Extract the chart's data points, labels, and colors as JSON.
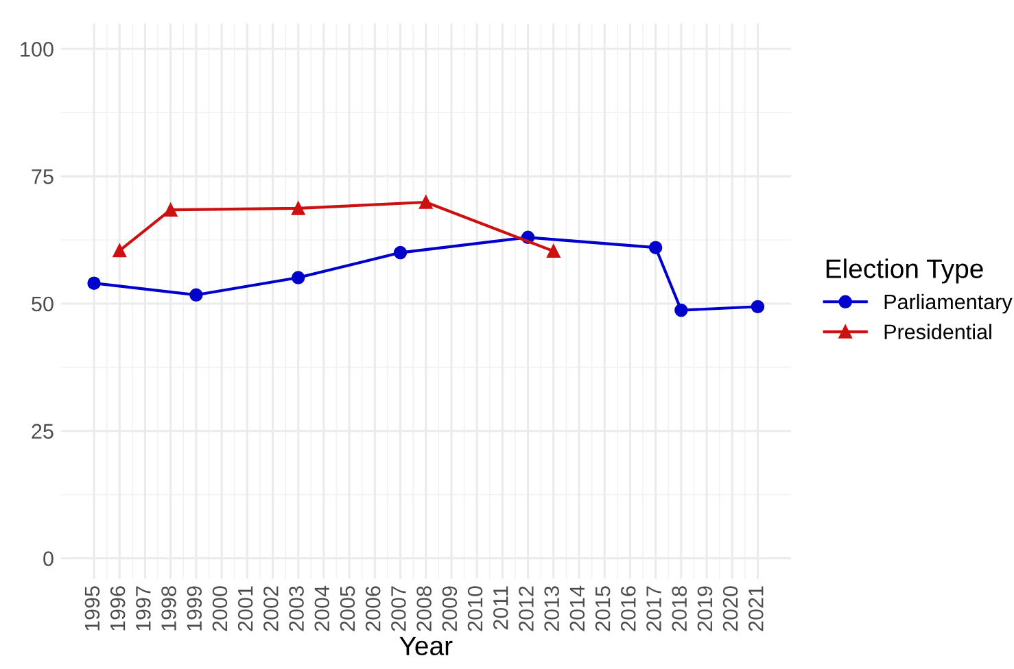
{
  "chart_data": {
    "type": "line",
    "xlabel": "Year",
    "legend_title": "Election Type",
    "legend": "right",
    "grid": true,
    "xlim": [
      1993.7,
      2022.3
    ],
    "ylim": [
      -4,
      105
    ],
    "xticks": [
      1995,
      1996,
      1997,
      1998,
      1999,
      2000,
      2001,
      2002,
      2003,
      2004,
      2005,
      2006,
      2007,
      2008,
      2009,
      2010,
      2011,
      2012,
      2013,
      2014,
      2015,
      2016,
      2017,
      2018,
      2019,
      2020,
      2021
    ],
    "yticks": [
      0,
      25,
      50,
      75,
      100
    ],
    "series": [
      {
        "name": "Parliamentary",
        "color": "#0000cc",
        "marker": "circle",
        "x": [
          1995,
          1999,
          2003,
          2007,
          2012,
          2017,
          2018,
          2021
        ],
        "values": [
          54.0,
          51.7,
          55.1,
          60.0,
          63.0,
          61.0,
          48.7,
          49.4
        ]
      },
      {
        "name": "Presidential",
        "color": "#cc1111",
        "marker": "triangle",
        "x": [
          1996,
          1998,
          2003,
          2008,
          2013
        ],
        "values": [
          60.4,
          68.4,
          68.7,
          69.9,
          60.3
        ]
      }
    ]
  }
}
